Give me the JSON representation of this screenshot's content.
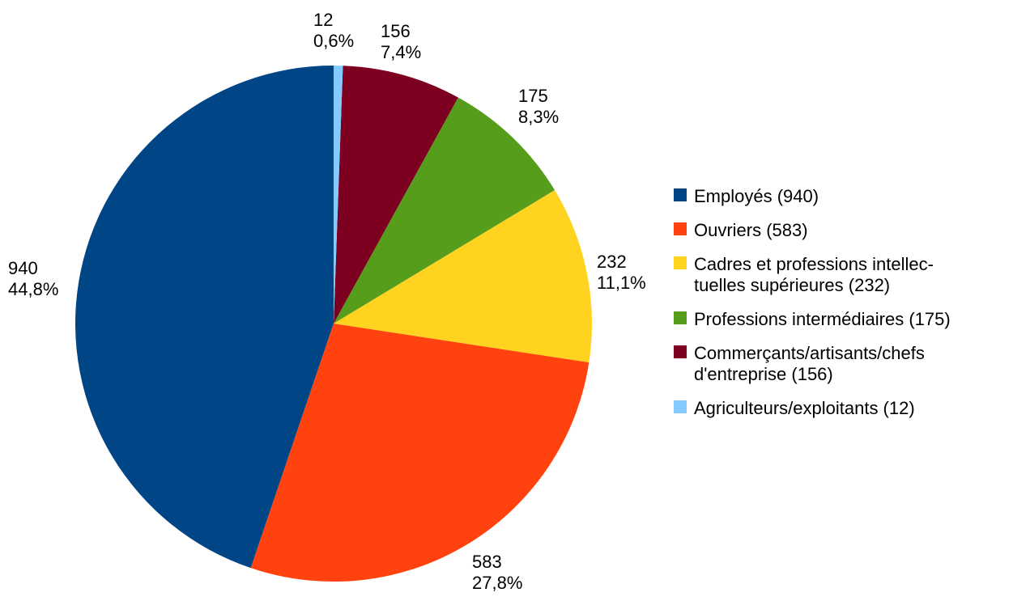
{
  "chart_data": {
    "type": "pie",
    "title": "",
    "slices": [
      {
        "label": "Employés (940)",
        "value": 940,
        "percent": "44,8%",
        "color": "#004586"
      },
      {
        "label": "Ouvriers (583)",
        "value": 583,
        "percent": "27,8%",
        "color": "#ff420e"
      },
      {
        "label": "Cadres et professions intellec-tuelles supérieures (232)",
        "legend_lines": [
          "Cadres et professions intellec-",
          "tuelles supérieures (232)"
        ],
        "value": 232,
        "percent": "11,1%",
        "color": "#ffd320"
      },
      {
        "label": "Professions intermédiaires (175)",
        "value": 175,
        "percent": "8,3%",
        "color": "#579d1c"
      },
      {
        "label": "Commerçants/artisants/chefs d'entreprise (156)",
        "legend_lines": [
          "Commerçants/artisants/chefs",
          "d'entreprise (156)"
        ],
        "value": 156,
        "percent": "7,4%",
        "color": "#7e0021"
      },
      {
        "label": "Agriculteurs/exploitants (12)",
        "value": 12,
        "percent": "0,6%",
        "color": "#83caff"
      }
    ],
    "legend_position": "right",
    "start_angle": "top",
    "direction": "counter-clockwise"
  }
}
